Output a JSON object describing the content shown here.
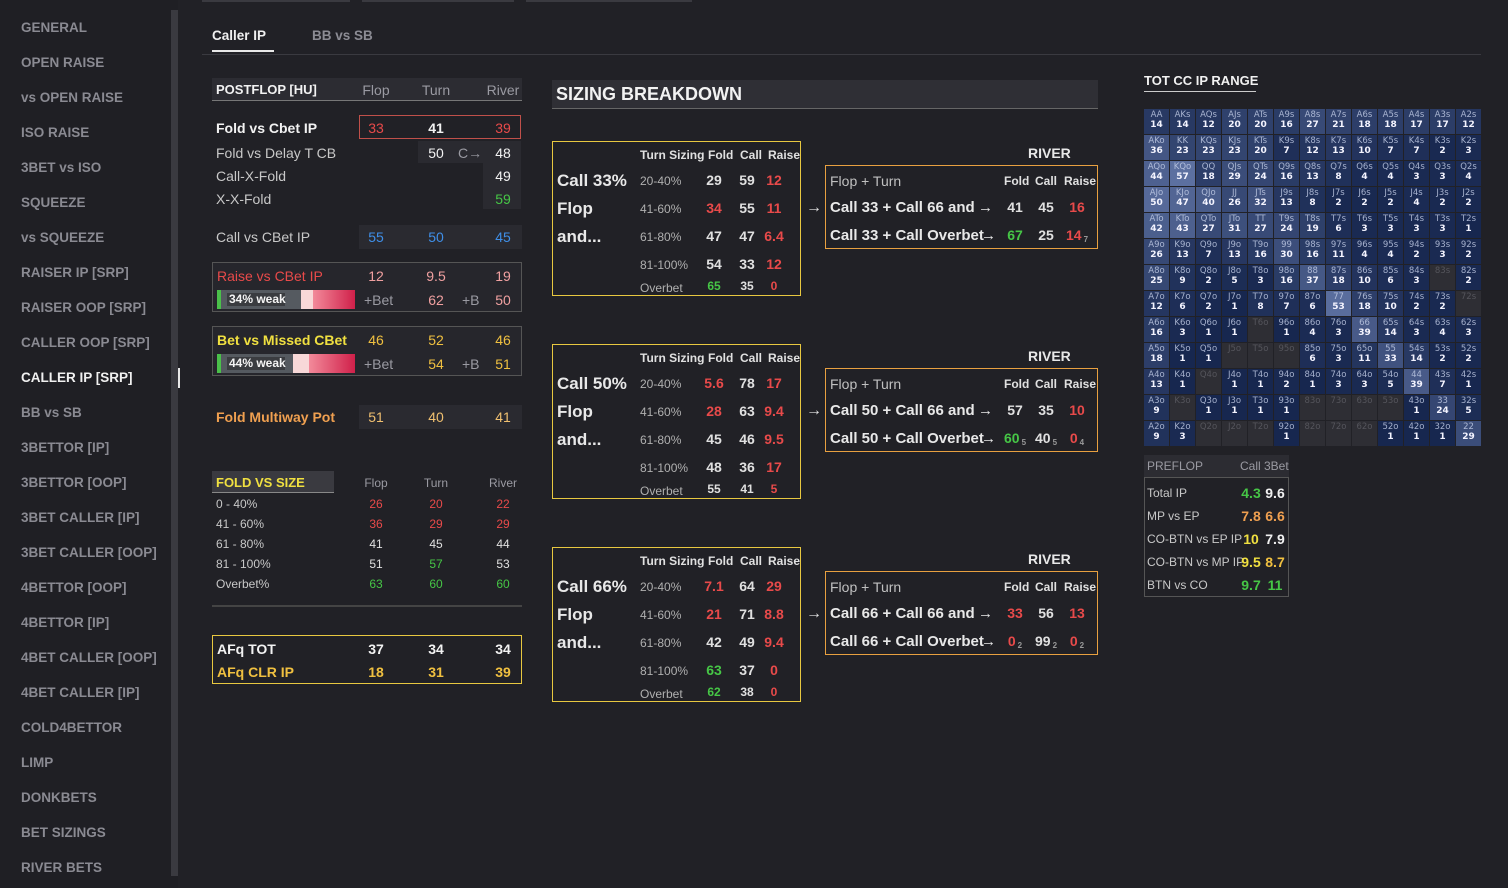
{
  "sidebar": {
    "items": [
      "GENERAL",
      "OPEN RAISE",
      "vs OPEN RAISE",
      "ISO RAISE",
      "3BET vs ISO",
      "SQUEEZE",
      "vs SQUEEZE",
      "RAISER IP [SRP]",
      "RAISER OOP [SRP]",
      "CALLER OOP [SRP]",
      "CALLER IP [SRP]",
      "BB vs SB",
      "3BETTOR [IP]",
      "3BETTOR [OOP]",
      "3BET CALLER [IP]",
      "3BET CALLER [OOP]",
      "4BETTOR [OOP]",
      "4BETTOR [IP]",
      "4BET CALLER [OOP]",
      "4BET CALLER [IP]",
      "COLD4BETTOR",
      "LIMP",
      "DONKBETS",
      "BET SIZINGS",
      "RIVER BETS"
    ],
    "active_index": 10
  },
  "tabs": [
    "Caller IP",
    "BB vs SB"
  ],
  "postflop": {
    "title": "POSTFLOP [HU]",
    "cols": [
      "Flop",
      "Turn",
      "River"
    ],
    "fold_cbet": {
      "label": "Fold vs Cbet IP",
      "flop": "33",
      "turn": "41",
      "river": "39"
    },
    "fold_delay": {
      "label": "Fold vs Delay T CB",
      "turn": "50",
      "arrow": "C→",
      "river": "48"
    },
    "call_x_fold": {
      "label": "Call-X-Fold",
      "river": "49"
    },
    "x_x_fold": {
      "label": "X-X-Fold",
      "river": "59"
    },
    "call_cbet": {
      "label": "Call vs CBet IP",
      "flop": "55",
      "turn": "50",
      "river": "45"
    },
    "raise_cbet": {
      "label": "Raise vs CBet IP",
      "flop": "12",
      "turn": "9.5",
      "river": "19",
      "bar_label": "34% weak",
      "bet_label": "+Bet",
      "bet_val": "62",
      "b_label": "+B",
      "b_val": "50",
      "weak_fraction": 0.34
    },
    "bet_missed": {
      "label": "Bet vs Missed CBet",
      "flop": "46",
      "turn": "52",
      "river": "46",
      "bar_label": "44% weak",
      "bet_label": "+Bet",
      "bet_val": "54",
      "b_label": "+B",
      "b_val": "51",
      "weak_fraction": 0.44
    },
    "fold_multiway": {
      "label": "Fold Multiway Pot",
      "flop": "51",
      "turn": "40",
      "river": "41"
    }
  },
  "fold_vs_size": {
    "title": "FOLD VS SIZE",
    "cols": [
      "Flop",
      "Turn",
      "River"
    ],
    "rows": [
      {
        "label": "0 - 40%",
        "v": [
          "26",
          "20",
          "22"
        ]
      },
      {
        "label": "41 - 60%",
        "v": [
          "36",
          "29",
          "29"
        ]
      },
      {
        "label": "61 - 80%",
        "v": [
          "41",
          "45",
          "44"
        ]
      },
      {
        "label": "81 - 100%",
        "v": [
          "51",
          "57",
          "53"
        ]
      },
      {
        "label": "Overbet%",
        "v": [
          "63",
          "60",
          "60"
        ]
      }
    ]
  },
  "afq": {
    "tot": {
      "label": "AFq TOT",
      "v": [
        "37",
        "34",
        "34"
      ]
    },
    "clr": {
      "label": "AFq CLR IP",
      "v": [
        "18",
        "31",
        "39"
      ]
    }
  },
  "sizing": {
    "title": "SIZING BREAKDOWN",
    "headers": [
      "Turn Sizing",
      "Fold",
      "Call",
      "Raise"
    ],
    "river_label": "RIVER",
    "ft_label": "Flop + Turn",
    "ft_headers": [
      "Fold",
      "Call",
      "Raise"
    ],
    "arrow": "→",
    "blocks": [
      {
        "title": [
          "Call 33%",
          "Flop",
          "and..."
        ],
        "rows": [
          [
            "20-40%",
            "29",
            "59",
            "12"
          ],
          [
            "41-60%",
            "34",
            "55",
            "11"
          ],
          [
            "61-80%",
            "47",
            "47",
            "6.4"
          ],
          [
            "81-100%",
            "54",
            "33",
            "12"
          ],
          [
            "Overbet",
            "65",
            "35",
            "0"
          ]
        ],
        "river": [
          {
            "label": "Call 33 + Call 66 and",
            "arrow": "→",
            "v": [
              "41",
              "45",
              "16"
            ],
            "s": [
              "",
              "",
              ""
            ]
          },
          {
            "label": "Call 33 + Call Overbet",
            "arrow": "→",
            "v": [
              "67",
              "25",
              "14"
            ],
            "s": [
              "",
              "",
              "7"
            ]
          }
        ]
      },
      {
        "title": [
          "Call 50%",
          "Flop",
          "and..."
        ],
        "rows": [
          [
            "20-40%",
            "5.6",
            "78",
            "17"
          ],
          [
            "41-60%",
            "28",
            "63",
            "9.4"
          ],
          [
            "61-80%",
            "45",
            "46",
            "9.5"
          ],
          [
            "81-100%",
            "48",
            "36",
            "17"
          ],
          [
            "Overbet",
            "55",
            "41",
            "5"
          ]
        ],
        "river": [
          {
            "label": "Call 50 + Call 66 and",
            "arrow": "→",
            "v": [
              "57",
              "35",
              "10"
            ],
            "s": [
              "",
              "",
              ""
            ]
          },
          {
            "label": "Call 50 + Call Overbet",
            "arrow": "→",
            "v": [
              "60",
              "40",
              "0"
            ],
            "s": [
              "5",
              "5",
              "4"
            ]
          }
        ]
      },
      {
        "title": [
          "Call 66%",
          "Flop",
          "and..."
        ],
        "rows": [
          [
            "20-40%",
            "7.1",
            "64",
            "29"
          ],
          [
            "41-60%",
            "21",
            "71",
            "8.8"
          ],
          [
            "61-80%",
            "42",
            "49",
            "9.4"
          ],
          [
            "81-100%",
            "63",
            "37",
            "0"
          ],
          [
            "Overbet",
            "62",
            "38",
            "0"
          ]
        ],
        "river": [
          {
            "label": "Call 66 + Call 66 and",
            "arrow": "→",
            "v": [
              "33",
              "56",
              "13"
            ],
            "s": [
              "",
              "",
              ""
            ]
          },
          {
            "label": "Call 66 + Call Overbet",
            "arrow": "→",
            "v": [
              "0",
              "99",
              "0"
            ],
            "s": [
              "2",
              "2",
              "2"
            ]
          }
        ]
      }
    ]
  },
  "range": {
    "title": "TOT CC IP RANGE",
    "cells": [
      [
        "AA",
        "14"
      ],
      [
        "AKs",
        "14"
      ],
      [
        "AQs",
        "12"
      ],
      [
        "AJs",
        "20"
      ],
      [
        "ATs",
        "20"
      ],
      [
        "A9s",
        "16"
      ],
      [
        "A8s",
        "27"
      ],
      [
        "A7s",
        "21"
      ],
      [
        "A6s",
        "18"
      ],
      [
        "A5s",
        "18"
      ],
      [
        "A4s",
        "17"
      ],
      [
        "A3s",
        "17"
      ],
      [
        "A2s",
        "12"
      ],
      [
        "AKo",
        "36"
      ],
      [
        "KK",
        "23"
      ],
      [
        "KQs",
        "23"
      ],
      [
        "KJs",
        "23"
      ],
      [
        "KTs",
        "20"
      ],
      [
        "K9s",
        "7"
      ],
      [
        "K8s",
        "12"
      ],
      [
        "K7s",
        "13"
      ],
      [
        "K6s",
        "10"
      ],
      [
        "K5s",
        "7"
      ],
      [
        "K4s",
        "7"
      ],
      [
        "K3s",
        "2"
      ],
      [
        "K2s",
        "3"
      ],
      [
        "AQo",
        "44"
      ],
      [
        "KQo",
        "57"
      ],
      [
        "QQ",
        "18"
      ],
      [
        "QJs",
        "29"
      ],
      [
        "QTs",
        "24"
      ],
      [
        "Q9s",
        "16"
      ],
      [
        "Q8s",
        "13"
      ],
      [
        "Q7s",
        "8"
      ],
      [
        "Q6s",
        "4"
      ],
      [
        "Q5s",
        "4"
      ],
      [
        "Q4s",
        "3"
      ],
      [
        "Q3s",
        "3"
      ],
      [
        "Q2s",
        "4"
      ],
      [
        "AJo",
        "50"
      ],
      [
        "KJo",
        "47"
      ],
      [
        "QJo",
        "40"
      ],
      [
        "JJ",
        "26"
      ],
      [
        "JTs",
        "32"
      ],
      [
        "J9s",
        "13"
      ],
      [
        "J8s",
        "8"
      ],
      [
        "J7s",
        "2"
      ],
      [
        "J6s",
        "2"
      ],
      [
        "J5s",
        "2"
      ],
      [
        "J4s",
        "4"
      ],
      [
        "J3s",
        "2"
      ],
      [
        "J2s",
        "2"
      ],
      [
        "ATo",
        "42"
      ],
      [
        "KTo",
        "43"
      ],
      [
        "QTo",
        "27"
      ],
      [
        "JTo",
        "31"
      ],
      [
        "TT",
        "27"
      ],
      [
        "T9s",
        "24"
      ],
      [
        "T8s",
        "19"
      ],
      [
        "T7s",
        "6"
      ],
      [
        "T6s",
        "3"
      ],
      [
        "T5s",
        "3"
      ],
      [
        "T4s",
        "3"
      ],
      [
        "T3s",
        "3"
      ],
      [
        "T2s",
        "1"
      ],
      [
        "A9o",
        "26"
      ],
      [
        "K9o",
        "13"
      ],
      [
        "Q9o",
        "7"
      ],
      [
        "J9o",
        "13"
      ],
      [
        "T9o",
        "16"
      ],
      [
        "99",
        "30"
      ],
      [
        "98s",
        "16"
      ],
      [
        "97s",
        "11"
      ],
      [
        "96s",
        "4"
      ],
      [
        "95s",
        "4"
      ],
      [
        "94s",
        "2"
      ],
      [
        "93s",
        "3"
      ],
      [
        "92s",
        "2"
      ],
      [
        "A8o",
        "25"
      ],
      [
        "K8o",
        "9"
      ],
      [
        "Q8o",
        "2"
      ],
      [
        "J8o",
        "5"
      ],
      [
        "T8o",
        "3"
      ],
      [
        "98o",
        "16"
      ],
      [
        "88",
        "37"
      ],
      [
        "87s",
        "18"
      ],
      [
        "86s",
        "10"
      ],
      [
        "85s",
        "6"
      ],
      [
        "84s",
        "3"
      ],
      [
        "83s",
        ""
      ],
      [
        "82s",
        "2"
      ],
      [
        "A7o",
        "12"
      ],
      [
        "K7o",
        "6"
      ],
      [
        "Q7o",
        "2"
      ],
      [
        "J7o",
        "1"
      ],
      [
        "T7o",
        "8"
      ],
      [
        "97o",
        "7"
      ],
      [
        "87o",
        "6"
      ],
      [
        "77",
        "53"
      ],
      [
        "76s",
        "18"
      ],
      [
        "75s",
        "10"
      ],
      [
        "74s",
        "2"
      ],
      [
        "73s",
        "2"
      ],
      [
        "72s",
        ""
      ],
      [
        "A6o",
        "16"
      ],
      [
        "K6o",
        "3"
      ],
      [
        "Q6o",
        "1"
      ],
      [
        "J6o",
        "1"
      ],
      [
        "T6o",
        ""
      ],
      [
        "96o",
        "1"
      ],
      [
        "86o",
        "4"
      ],
      [
        "76o",
        "3"
      ],
      [
        "66",
        "39"
      ],
      [
        "65s",
        "14"
      ],
      [
        "64s",
        "3"
      ],
      [
        "63s",
        "4"
      ],
      [
        "62s",
        "3"
      ],
      [
        "A5o",
        "18"
      ],
      [
        "K5o",
        "1"
      ],
      [
        "Q5o",
        "1"
      ],
      [
        "J5o",
        ""
      ],
      [
        "T5o",
        ""
      ],
      [
        "95o",
        ""
      ],
      [
        "85o",
        "6"
      ],
      [
        "75o",
        "3"
      ],
      [
        "65o",
        "11"
      ],
      [
        "55",
        "33"
      ],
      [
        "54s",
        "14"
      ],
      [
        "53s",
        "2"
      ],
      [
        "52s",
        "2"
      ],
      [
        "A4o",
        "13"
      ],
      [
        "K4o",
        "1"
      ],
      [
        "Q4o",
        ""
      ],
      [
        "J4o",
        "1"
      ],
      [
        "T4o",
        "1"
      ],
      [
        "94o",
        "2"
      ],
      [
        "84o",
        "1"
      ],
      [
        "74o",
        "3"
      ],
      [
        "64o",
        "3"
      ],
      [
        "54o",
        "5"
      ],
      [
        "44",
        "39"
      ],
      [
        "43s",
        "7"
      ],
      [
        "42s",
        "1"
      ],
      [
        "A3o",
        "9"
      ],
      [
        "K3o",
        ""
      ],
      [
        "Q3o",
        "1"
      ],
      [
        "J3o",
        "1"
      ],
      [
        "T3o",
        "1"
      ],
      [
        "93o",
        "1"
      ],
      [
        "83o",
        ""
      ],
      [
        "73o",
        ""
      ],
      [
        "63o",
        ""
      ],
      [
        "53o",
        ""
      ],
      [
        "43o",
        "1"
      ],
      [
        "33",
        "24"
      ],
      [
        "32s",
        "5"
      ],
      [
        "A2o",
        "9"
      ],
      [
        "K2o",
        "3"
      ],
      [
        "Q2o",
        ""
      ],
      [
        "J2o",
        ""
      ],
      [
        "T2o",
        ""
      ],
      [
        "92o",
        "1"
      ],
      [
        "82o",
        ""
      ],
      [
        "72o",
        ""
      ],
      [
        "62o",
        ""
      ],
      [
        "52o",
        "1"
      ],
      [
        "42o",
        "1"
      ],
      [
        "32o",
        "1"
      ],
      [
        "22",
        "29"
      ]
    ]
  },
  "preflop": {
    "title": "PREFLOP",
    "col": "Call 3Bet",
    "rows": [
      {
        "label": "Total IP",
        "a": "4.3",
        "b": "9.6"
      },
      {
        "label": "MP vs EP",
        "a": "7.8",
        "b": "6.6"
      },
      {
        "label": "CO-BTN vs EP IP",
        "a": "10",
        "b": "7.9"
      },
      {
        "label": "CO-BTN vs MP IP",
        "a": "9.5",
        "b": "8.7"
      },
      {
        "label": "BTN vs CO",
        "a": "9.7",
        "b": "11"
      }
    ]
  },
  "colors": {
    "bg": "#212126",
    "red": "#e84a4a",
    "green": "#46c646",
    "blue": "#3f8fe8",
    "yellow": "#f0c040",
    "orange": "#f0a050"
  }
}
